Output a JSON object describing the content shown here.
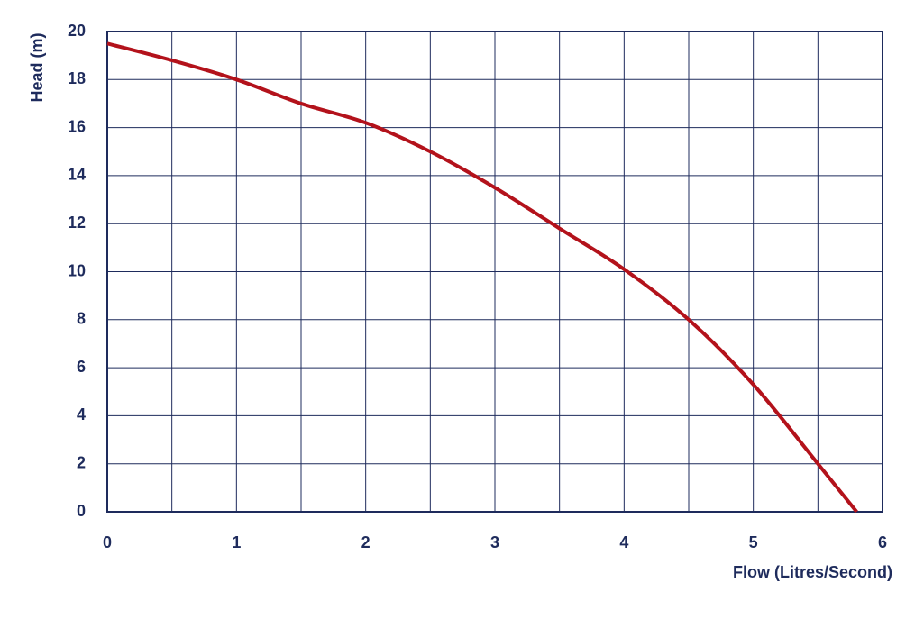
{
  "chart_data": {
    "type": "line",
    "xlabel": "Flow (Litres/Second)",
    "ylabel": "Head (m)",
    "x": [
      0,
      0.5,
      1,
      1.5,
      2,
      2.5,
      3,
      3.5,
      4,
      4.5,
      5,
      5.5,
      5.8
    ],
    "series": [
      {
        "color": "#b3121b",
        "values": [
          19.5,
          18.8,
          18.0,
          17.0,
          16.2,
          15.0,
          13.5,
          11.8,
          10.1,
          8.0,
          5.3,
          2.0,
          0
        ]
      }
    ],
    "xlim": [
      0,
      6
    ],
    "xticks": [
      0,
      1,
      2,
      3,
      4,
      5,
      6
    ],
    "x_gridlines": [
      0.5,
      1.5,
      2.5,
      3.5,
      4.5,
      5.5
    ],
    "ylim": [
      0,
      20
    ],
    "yticks": [
      0,
      2,
      4,
      6,
      8,
      10,
      12,
      14,
      16,
      18,
      20
    ],
    "grid": true
  }
}
